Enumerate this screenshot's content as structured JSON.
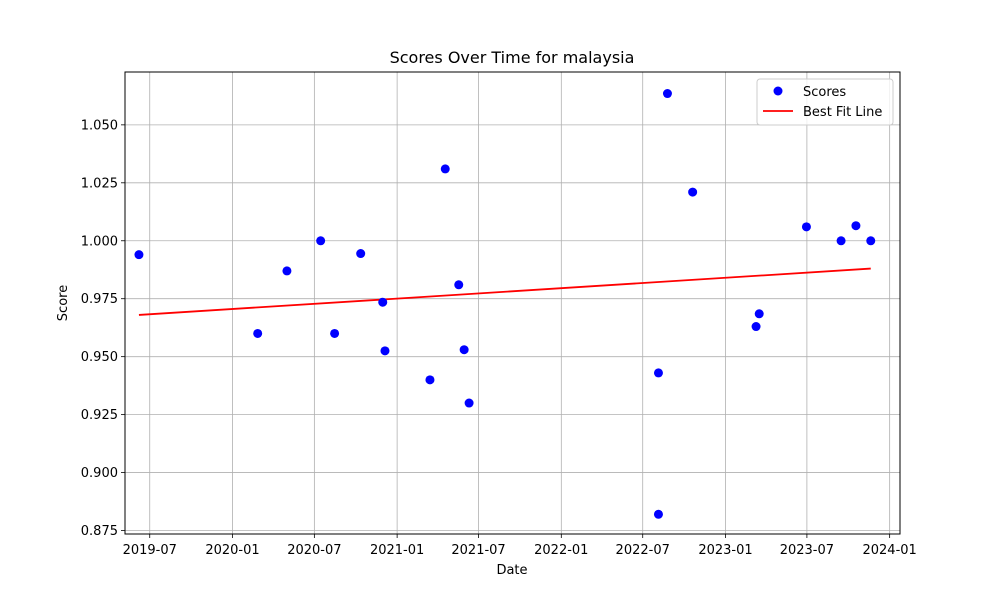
{
  "chart_data": {
    "type": "scatter",
    "title": "Scores Over Time for malaysia",
    "xlabel": "Date",
    "ylabel": "Score",
    "x_ticks": [
      "2019-07",
      "2020-01",
      "2020-07",
      "2021-01",
      "2021-07",
      "2022-01",
      "2022-07",
      "2023-01",
      "2023-07",
      "2024-01"
    ],
    "y_ticks": [
      "0.875",
      "0.900",
      "0.925",
      "0.950",
      "0.975",
      "1.000",
      "1.025",
      "1.050"
    ],
    "xlim": [
      "2019-05-07",
      "2024-01-24"
    ],
    "ylim": [
      0.8735,
      1.0728
    ],
    "grid": true,
    "legend_position": "top-right",
    "colors": {
      "scores": "#0000ff",
      "best_fit": "#ff0000",
      "grid": "#b0b0b0"
    },
    "series": [
      {
        "name": "Scores",
        "kind": "scatter",
        "points": [
          {
            "x": "2019-06-07",
            "y": 0.994
          },
          {
            "x": "2020-02-26",
            "y": 0.96
          },
          {
            "x": "2020-05-01",
            "y": 0.987
          },
          {
            "x": "2020-07-15",
            "y": 1.0
          },
          {
            "x": "2020-08-15",
            "y": 0.96
          },
          {
            "x": "2020-10-12",
            "y": 0.9945
          },
          {
            "x": "2020-11-30",
            "y": 0.9735
          },
          {
            "x": "2020-12-05",
            "y": 0.9525
          },
          {
            "x": "2021-03-15",
            "y": 0.94
          },
          {
            "x": "2021-04-18",
            "y": 1.031
          },
          {
            "x": "2021-05-18",
            "y": 0.981
          },
          {
            "x": "2021-05-30",
            "y": 0.953
          },
          {
            "x": "2021-06-10",
            "y": 0.93
          },
          {
            "x": "2022-08-05",
            "y": 0.943
          },
          {
            "x": "2022-08-05",
            "y": 0.882
          },
          {
            "x": "2022-08-25",
            "y": 1.0635
          },
          {
            "x": "2022-10-20",
            "y": 1.021
          },
          {
            "x": "2023-03-10",
            "y": 0.963
          },
          {
            "x": "2023-03-17",
            "y": 0.9685
          },
          {
            "x": "2023-06-30",
            "y": 1.006
          },
          {
            "x": "2023-09-15",
            "y": 1.0
          },
          {
            "x": "2023-10-18",
            "y": 1.0065
          },
          {
            "x": "2023-11-20",
            "y": 1.0
          }
        ]
      },
      {
        "name": "Best Fit Line",
        "kind": "line",
        "points": [
          {
            "x": "2019-06-07",
            "y": 0.968
          },
          {
            "x": "2023-11-20",
            "y": 0.988
          }
        ]
      }
    ]
  }
}
